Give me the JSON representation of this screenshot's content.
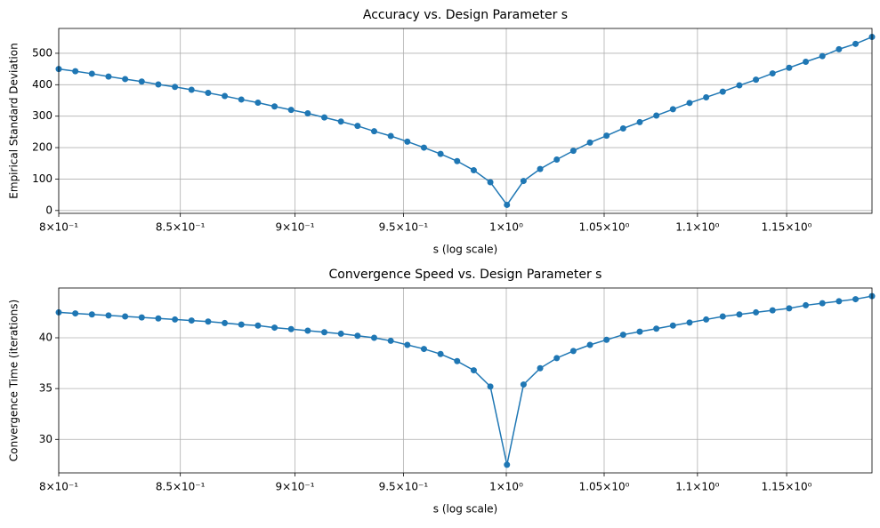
{
  "chart_data": [
    {
      "type": "line",
      "title": "Accuracy vs. Design Parameter s",
      "xlabel": "s (log scale)",
      "ylabel": "Empirical Standard Deviation",
      "xscale": "log",
      "grid": true,
      "color": "#1f77b4",
      "x": [
        0.8,
        0.80665,
        0.81335,
        0.82011,
        0.82693,
        0.8338,
        0.84073,
        0.84772,
        0.85476,
        0.86187,
        0.86903,
        0.87625,
        0.88354,
        0.89088,
        0.89828,
        0.90575,
        0.91328,
        0.92087,
        0.92852,
        0.93624,
        0.94402,
        0.95186,
        0.95977,
        0.96775,
        0.97579,
        0.9839,
        0.99208,
        1.00033,
        1.00864,
        1.01702,
        1.02547,
        1.034,
        1.04259,
        1.05125,
        1.05999,
        1.0688,
        1.07768,
        1.08664,
        1.09567,
        1.10478,
        1.11396,
        1.12322,
        1.13255,
        1.14196,
        1.15145,
        1.16102,
        1.17067,
        1.1804,
        1.19021,
        1.2
      ],
      "values": [
        450,
        443,
        435,
        426,
        418,
        410,
        401,
        393,
        384,
        374,
        364,
        353,
        343,
        331,
        320,
        309,
        296,
        283,
        269,
        252,
        237,
        219,
        200,
        180,
        157,
        128,
        90,
        18,
        94,
        132,
        162,
        190,
        216,
        238,
        261,
        281,
        302,
        322,
        342,
        360,
        378,
        398,
        416,
        436,
        454,
        473,
        491,
        513,
        530,
        552
      ],
      "xlim": [
        0.8,
        1.2
      ],
      "ylim": [
        -9,
        579
      ],
      "xticks": [
        {
          "value": 0.8,
          "label": "8×10⁻¹"
        },
        {
          "value": 0.85,
          "label": "8.5×10⁻¹"
        },
        {
          "value": 0.9,
          "label": "9×10⁻¹"
        },
        {
          "value": 0.95,
          "label": "9.5×10⁻¹"
        },
        {
          "value": 1.0,
          "label": "1×10⁰"
        },
        {
          "value": 1.05,
          "label": "1.05×10⁰"
        },
        {
          "value": 1.1,
          "label": "1.1×10⁰"
        },
        {
          "value": 1.15,
          "label": "1.15×10⁰"
        }
      ],
      "yticks": [
        0,
        100,
        200,
        300,
        400,
        500
      ]
    },
    {
      "type": "line",
      "title": "Convergence Speed vs. Design Parameter s",
      "xlabel": "s (log scale)",
      "ylabel": "Convergence Time (iterations)",
      "xscale": "log",
      "grid": true,
      "color": "#1f77b4",
      "x": [
        0.8,
        0.80665,
        0.81335,
        0.82011,
        0.82693,
        0.8338,
        0.84073,
        0.84772,
        0.85476,
        0.86187,
        0.86903,
        0.87625,
        0.88354,
        0.89088,
        0.89828,
        0.90575,
        0.91328,
        0.92087,
        0.92852,
        0.93624,
        0.94402,
        0.95186,
        0.95977,
        0.96775,
        0.97579,
        0.9839,
        0.99208,
        1.00033,
        1.00864,
        1.01702,
        1.02547,
        1.034,
        1.04259,
        1.05125,
        1.05999,
        1.0688,
        1.07768,
        1.08664,
        1.09567,
        1.10478,
        1.11396,
        1.12322,
        1.13255,
        1.14196,
        1.15145,
        1.16102,
        1.17067,
        1.1804,
        1.19021,
        1.2
      ],
      "values": [
        42.5,
        42.4,
        42.3,
        42.2,
        42.1,
        42.0,
        41.9,
        41.8,
        41.7,
        41.6,
        41.45,
        41.3,
        41.2,
        41.0,
        40.85,
        40.7,
        40.55,
        40.4,
        40.2,
        40.0,
        39.7,
        39.3,
        38.9,
        38.4,
        37.7,
        36.8,
        35.2,
        27.5,
        35.4,
        37.0,
        38.0,
        38.7,
        39.3,
        39.8,
        40.3,
        40.6,
        40.9,
        41.2,
        41.5,
        41.8,
        42.1,
        42.3,
        42.5,
        42.7,
        42.9,
        43.2,
        43.4,
        43.6,
        43.8,
        44.1
      ],
      "xlim": [
        0.8,
        1.2
      ],
      "ylim": [
        26.7,
        44.9
      ],
      "xticks": [
        {
          "value": 0.8,
          "label": "8×10⁻¹"
        },
        {
          "value": 0.85,
          "label": "8.5×10⁻¹"
        },
        {
          "value": 0.9,
          "label": "9×10⁻¹"
        },
        {
          "value": 0.95,
          "label": "9.5×10⁻¹"
        },
        {
          "value": 1.0,
          "label": "1×10⁰"
        },
        {
          "value": 1.05,
          "label": "1.05×10⁰"
        },
        {
          "value": 1.1,
          "label": "1.1×10⁰"
        },
        {
          "value": 1.15,
          "label": "1.15×10⁰"
        }
      ],
      "yticks": [
        30,
        35,
        40
      ]
    }
  ]
}
